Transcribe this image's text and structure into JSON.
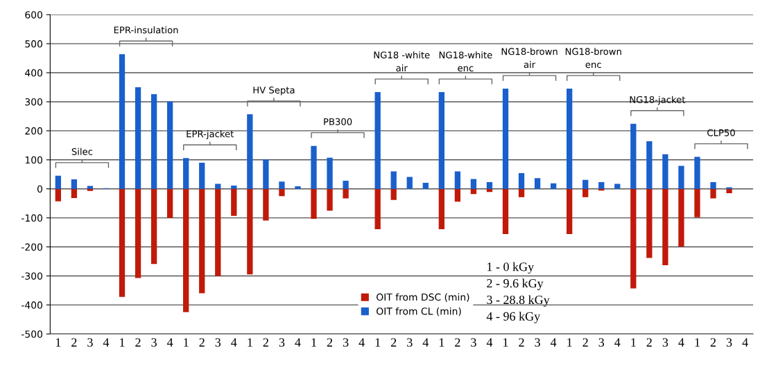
{
  "chart_data": {
    "type": "bar",
    "categories": [
      "1",
      "2",
      "3",
      "4",
      "1",
      "2",
      "3",
      "4",
      "1",
      "2",
      "3",
      "4",
      "1",
      "2",
      "3",
      "4",
      "1",
      "2",
      "3",
      "4",
      "1",
      "2",
      "3",
      "4",
      "1",
      "2",
      "3",
      "4",
      "1",
      "2",
      "3",
      "4",
      "1",
      "2",
      "3",
      "4",
      "1",
      "2",
      "3",
      "4",
      "1",
      "2",
      "3",
      "4"
    ],
    "series": [
      {
        "name": "OIT from DSC (min)",
        "color": "#c01a0a",
        "values": [
          -43,
          -32,
          -7,
          null,
          -372,
          -307,
          -259,
          -100,
          -425,
          -360,
          -300,
          -93,
          -295,
          -109,
          -25,
          null,
          -103,
          -75,
          -33,
          null,
          -139,
          -38,
          null,
          null,
          -139,
          -44,
          -18,
          -11,
          -156,
          -29,
          null,
          null,
          -156,
          -29,
          -6,
          null,
          -343,
          -238,
          -263,
          -199,
          -98,
          -33,
          -15,
          null
        ]
      },
      {
        "name": "OIT from CL (min)",
        "color": "#1a5fcc",
        "values": [
          45,
          33,
          10,
          2,
          464,
          350,
          326,
          301,
          106,
          90,
          17,
          11,
          257,
          101,
          25,
          9,
          148,
          107,
          28,
          null,
          333,
          60,
          41,
          21,
          333,
          60,
          34,
          23,
          345,
          54,
          37,
          19,
          345,
          31,
          23,
          17,
          224,
          164,
          119,
          79,
          110,
          23,
          5,
          null
        ]
      }
    ],
    "ylim": [
      -500,
      600
    ],
    "yticks": [
      -500,
      -400,
      -300,
      -200,
      -100,
      0,
      100,
      200,
      300,
      400,
      500,
      600
    ],
    "grid": "y",
    "stacked": true,
    "legend": "bottom",
    "annotations": [
      "Silec",
      "EPR-insulation",
      "EPR-jacket",
      "HV Septa",
      "PB300",
      "NG18 -white\nair",
      "NG18-white\nenc",
      "NG18-brown\nair",
      "NG18-brown\nenc",
      "NG18-jacket",
      "CLP50",
      "1 - 0 kGy",
      "2 - 9.6 kGy",
      "3 - 28.8 kGy",
      "4 - 96 kGy"
    ]
  }
}
